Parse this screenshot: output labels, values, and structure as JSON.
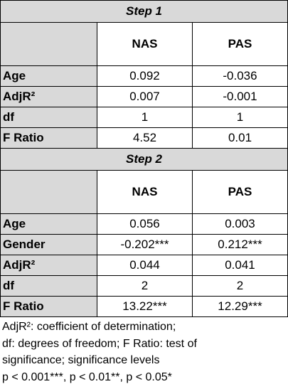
{
  "table": {
    "blocks": [
      {
        "title": "Step 1",
        "columns": [
          "NAS",
          "PAS"
        ],
        "rows": [
          [
            "Age",
            "0.092",
            "-0.036"
          ],
          [
            "AdjR²",
            "0.007",
            "-0.001"
          ],
          [
            "df",
            "1",
            "1"
          ],
          [
            "F Ratio",
            "4.52",
            "0.01"
          ]
        ]
      },
      {
        "title": "Step 2",
        "columns": [
          "NAS",
          "PAS"
        ],
        "rows": [
          [
            "Age",
            "0.056",
            "0.003"
          ],
          [
            "Gender",
            "-0.202***",
            "0.212***"
          ],
          [
            "AdjR²",
            "0.044",
            "0.041"
          ],
          [
            "df",
            "2",
            "2"
          ],
          [
            "F Ratio",
            "13.22***",
            "12.29***"
          ]
        ]
      }
    ]
  },
  "footnote": [
    "AdjR²: coefficient of determination;",
    "df: degrees of freedom; F Ratio: test of",
    "significance; significance levels",
    "p < 0.001***, p < 0.01**, p < 0.05*"
  ]
}
